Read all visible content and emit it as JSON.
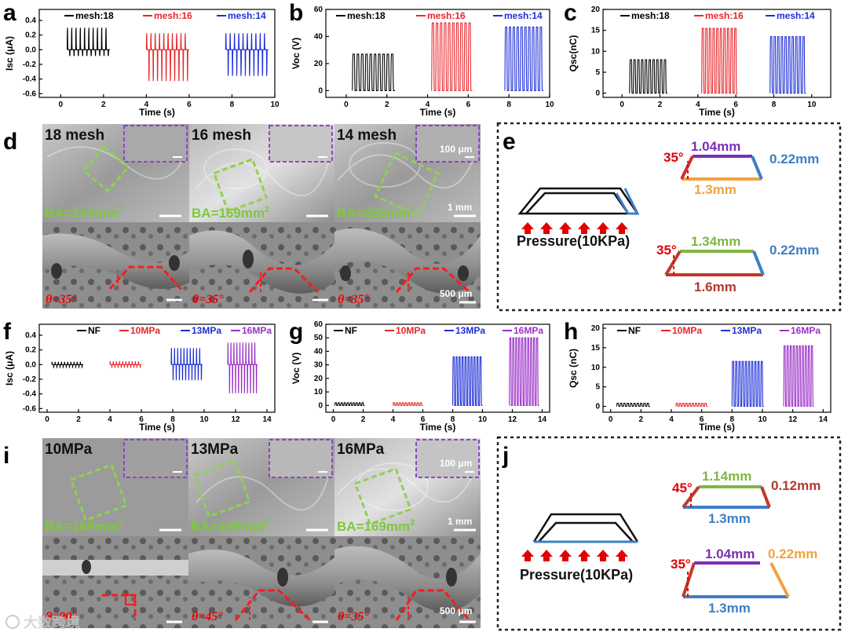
{
  "panels": {
    "a": "a",
    "b": "b",
    "c": "c",
    "d": "d",
    "e": "e",
    "f": "f",
    "g": "g",
    "h": "h",
    "i": "i",
    "j": "j"
  },
  "chart_data": [
    {
      "id": "a",
      "type": "line",
      "ylabel": "Isc (μA)",
      "xlabel": "Time (s)",
      "xlim": [
        -1,
        10
      ],
      "ylim": [
        -0.65,
        0.55
      ],
      "xticks": [
        "0",
        "2",
        "4",
        "6",
        "8",
        "10"
      ],
      "yticks": [
        "-0.6",
        "-0.4",
        "-0.2",
        "0.0",
        "0.2",
        "0.4"
      ],
      "series": [
        {
          "name": "mesh:18",
          "color": "#000000",
          "x0": 0.3,
          "x1": 2.3,
          "pos": 0.4,
          "neg": -0.12,
          "cycles": 10
        },
        {
          "name": "mesh:16",
          "color": "#e8262b",
          "x0": 4.0,
          "x1": 6.0,
          "pos": 0.3,
          "neg": -0.6,
          "cycles": 10
        },
        {
          "name": "mesh:14",
          "color": "#1f2fd6",
          "x0": 7.7,
          "x1": 9.7,
          "pos": 0.3,
          "neg": -0.5,
          "cycles": 10
        }
      ]
    },
    {
      "id": "b",
      "type": "line",
      "ylabel": "Voc (V)",
      "xlabel": "Time (s)",
      "xlim": [
        -1,
        10
      ],
      "ylim": [
        -5,
        60
      ],
      "xticks": [
        "0",
        "2",
        "4",
        "6",
        "8",
        "10"
      ],
      "yticks": [
        "0",
        "20",
        "40",
        "60"
      ],
      "series": [
        {
          "name": "mesh:18",
          "color": "#000000",
          "x0": 0.3,
          "x1": 2.4,
          "peak": 27,
          "cycles": 10
        },
        {
          "name": "mesh:16",
          "color": "#e8262b",
          "x0": 4.2,
          "x1": 6.2,
          "peak": 50,
          "cycles": 10
        },
        {
          "name": "mesh:14",
          "color": "#1f2fd6",
          "x0": 7.8,
          "x1": 9.7,
          "peak": 47,
          "cycles": 10
        }
      ]
    },
    {
      "id": "c",
      "type": "line",
      "ylabel": "Qsc(nC)",
      "xlabel": "Time (s)",
      "xlim": [
        -1,
        11
      ],
      "ylim": [
        -1,
        20
      ],
      "xticks": [
        "0",
        "2",
        "4",
        "6",
        "8",
        "10"
      ],
      "yticks": [
        "0",
        "5",
        "10",
        "15",
        "20"
      ],
      "series": [
        {
          "name": "mesh:18",
          "color": "#000000",
          "x0": 0.4,
          "x1": 2.4,
          "peak": 8,
          "cycles": 10
        },
        {
          "name": "mesh:16",
          "color": "#e8262b",
          "x0": 4.2,
          "x1": 6.1,
          "peak": 15.5,
          "cycles": 10
        },
        {
          "name": "mesh:14",
          "color": "#1f2fd6",
          "x0": 7.8,
          "x1": 9.7,
          "peak": 13.5,
          "cycles": 10
        }
      ]
    },
    {
      "id": "f",
      "type": "line",
      "ylabel": "Isc (μA)",
      "xlabel": "Time (s)",
      "xlim": [
        -0.5,
        14.5
      ],
      "ylim": [
        -0.65,
        0.55
      ],
      "xticks": [
        "0",
        "2",
        "4",
        "6",
        "8",
        "10",
        "12",
        "14"
      ],
      "yticks": [
        "-0.6",
        "-0.4",
        "-0.2",
        "0.0",
        "0.2",
        "0.4"
      ],
      "series": [
        {
          "name": "NF",
          "color": "#000000",
          "x0": 0.3,
          "x1": 2.3,
          "pos": 0.05,
          "neg": -0.05,
          "cycles": 10
        },
        {
          "name": "10MPa",
          "color": "#e8262b",
          "x0": 4.0,
          "x1": 6.0,
          "pos": 0.06,
          "neg": -0.06,
          "cycles": 10
        },
        {
          "name": "13MPa",
          "color": "#1f2fd6",
          "x0": 7.9,
          "x1": 9.9,
          "pos": 0.3,
          "neg": -0.3,
          "cycles": 10
        },
        {
          "name": "16MPa",
          "color": "#9b2fc8",
          "x0": 11.5,
          "x1": 13.4,
          "pos": 0.4,
          "neg": -0.55,
          "cycles": 10
        }
      ]
    },
    {
      "id": "g",
      "type": "line",
      "ylabel": "Voc (V)",
      "xlabel": "Time (s)",
      "xlim": [
        -0.5,
        14.5
      ],
      "ylim": [
        -5,
        60
      ],
      "xticks": [
        "0",
        "2",
        "4",
        "6",
        "8",
        "10",
        "12",
        "14"
      ],
      "yticks": [
        "0",
        "10",
        "20",
        "30",
        "40",
        "50",
        "60"
      ],
      "series": [
        {
          "name": "NF",
          "color": "#000000",
          "x0": 0.1,
          "x1": 2.1,
          "peak": 2,
          "cycles": 10
        },
        {
          "name": "10MPa",
          "color": "#e8262b",
          "x0": 4.0,
          "x1": 6.0,
          "peak": 2,
          "cycles": 10
        },
        {
          "name": "13MPa",
          "color": "#1f2fd6",
          "x0": 8.0,
          "x1": 10.0,
          "peak": 36,
          "cycles": 10
        },
        {
          "name": "16MPa",
          "color": "#9b2fc8",
          "x0": 11.8,
          "x1": 13.8,
          "peak": 50,
          "cycles": 10
        }
      ]
    },
    {
      "id": "h",
      "type": "line",
      "ylabel": "Qsc (nC)",
      "xlabel": "Time (s)",
      "xlim": [
        -0.5,
        14.5
      ],
      "ylim": [
        -1.5,
        21
      ],
      "xticks": [
        "0",
        "2",
        "4",
        "6",
        "8",
        "10",
        "12",
        "14"
      ],
      "yticks": [
        "0",
        "5",
        "10",
        "15",
        "20"
      ],
      "series": [
        {
          "name": "NF",
          "color": "#000000",
          "x0": 0.4,
          "x1": 2.6,
          "peak": 0.8,
          "cycles": 10
        },
        {
          "name": "10MPa",
          "color": "#e8262b",
          "x0": 4.3,
          "x1": 6.4,
          "peak": 0.8,
          "cycles": 10
        },
        {
          "name": "13MPa",
          "color": "#1f2fd6",
          "x0": 8.0,
          "x1": 10.1,
          "peak": 11.5,
          "cycles": 10
        },
        {
          "name": "16MPa",
          "color": "#9b2fc8",
          "x0": 11.4,
          "x1": 13.4,
          "peak": 15.5,
          "cycles": 10
        }
      ]
    }
  ],
  "sem_d": {
    "titles": [
      "18 mesh",
      "16 mesh",
      "14 mesh"
    ],
    "ba": [
      "BA=144mm",
      "BA=169mm",
      "BA=256mm"
    ],
    "ba_sup": "2",
    "theta": [
      "θ=35°",
      "θ=35°",
      "θ=35°"
    ],
    "inset_scale": "100 μm",
    "top_scale": "1 mm",
    "bottom_scale": "500 μm"
  },
  "sem_i": {
    "titles": [
      "10MPa",
      "13MPa",
      "16MPa"
    ],
    "ba": [
      "BA=169mm",
      "BA=169mm",
      "BA=169mm"
    ],
    "ba_sup": "2",
    "theta": [
      "θ=90°",
      "θ=45°",
      "θ=35°"
    ],
    "inset_scale": "100 μm",
    "top_scale": "1 mm",
    "bottom_scale": "500 μm"
  },
  "schematic_e": {
    "pressure": "Pressure(10KPa)",
    "top": {
      "angle": "35°",
      "top_len": "1.04mm",
      "side": "0.22mm",
      "bottom_len": "1.3mm"
    },
    "bottom": {
      "angle": "35°",
      "top_len": "1.34mm",
      "side": "0.22mm",
      "bottom_len": "1.6mm"
    }
  },
  "schematic_j": {
    "pressure": "Pressure(10KPa)",
    "top": {
      "angle": "45°",
      "top_len": "1.14mm",
      "side": "0.12mm",
      "bottom_len": "1.3mm"
    },
    "bottom": {
      "angle": "35°",
      "top_len": "1.04mm",
      "side": "0.22mm",
      "bottom_len": "1.3mm"
    }
  },
  "watermark": "大数跨境"
}
